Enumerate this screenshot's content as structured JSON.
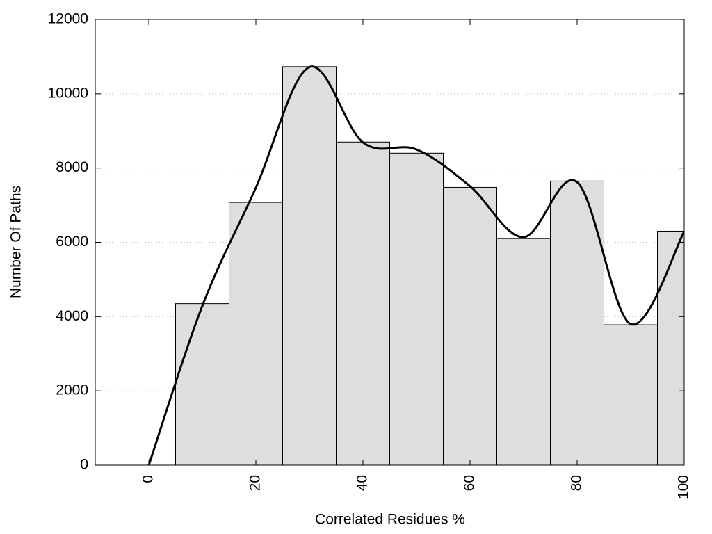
{
  "chart_data": {
    "type": "histogram",
    "x_label": "Correlated Residues %",
    "y_label": "Number Of Paths",
    "bins": [
      5,
      15,
      25,
      35,
      45,
      55,
      65,
      75,
      85,
      95,
      105
    ],
    "counts": [
      4350,
      7075,
      10730,
      8700,
      8400,
      7480,
      6100,
      7650,
      3780,
      6300
    ],
    "color": "#dedede",
    "line": {
      "x": [
        0,
        10,
        20,
        30,
        40,
        50,
        60,
        70,
        80,
        90,
        100
      ],
      "values": [
        0,
        4290,
        7470,
        10720,
        8690,
        8500,
        7510,
        6140,
        7620,
        3800,
        6290
      ],
      "color": "#000000"
    },
    "xlim": [
      -10,
      100
    ],
    "xticks": [
      0,
      20,
      40,
      60,
      80,
      100
    ],
    "ylim": [
      0,
      12000
    ],
    "yticks": [
      0,
      2000,
      4000,
      6000,
      8000,
      10000,
      12000
    ],
    "grid": true
  }
}
